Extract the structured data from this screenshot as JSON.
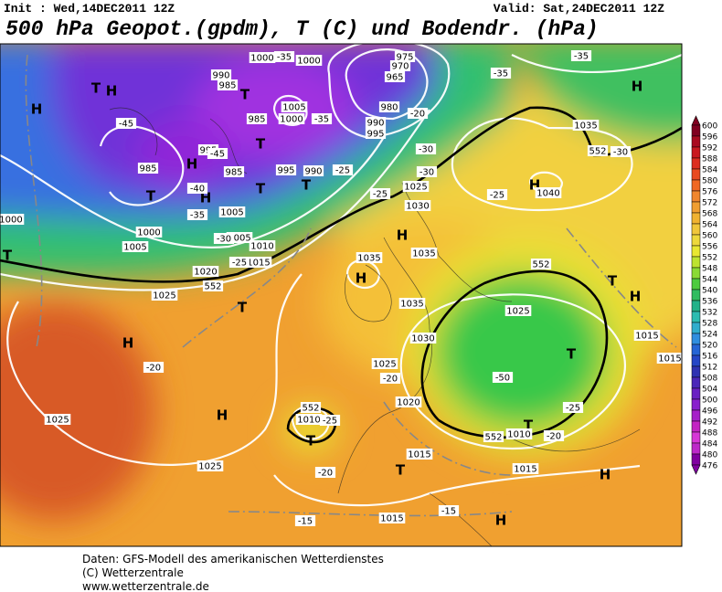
{
  "header": {
    "init": "Init : Wed,14DEC2011  12Z",
    "valid": "Valid: Sat,24DEC2011  12Z",
    "title": "500 hPa Geopot.(gpdm), T (C) und Bodendr. (hPa)"
  },
  "color_scale": {
    "levels": [
      600,
      596,
      592,
      588,
      584,
      580,
      576,
      572,
      568,
      564,
      560,
      556,
      552,
      548,
      544,
      540,
      536,
      532,
      528,
      524,
      520,
      516,
      512,
      508,
      504,
      500,
      496,
      492,
      488,
      484,
      480,
      476
    ]
  },
  "map_labels": [
    "H",
    "H",
    "T",
    "T",
    "H",
    "T",
    "H",
    "T",
    "T",
    "T",
    "H",
    "H",
    "T",
    "H",
    "H",
    "T",
    "T",
    "H",
    "H",
    "H",
    "T",
    "T",
    "T",
    "H",
    "H",
    "T",
    "990",
    "985",
    "1000",
    "1000",
    "985",
    "1005",
    "1000",
    "975",
    "970",
    "965",
    "980",
    "990",
    "995",
    "995",
    "985",
    "995",
    "990",
    "985",
    "1000",
    "1005",
    "1000",
    "1005",
    "1005",
    "1010",
    "1015",
    "1020",
    "1025",
    "1025",
    "1030",
    "1035",
    "1035",
    "1035",
    "1030",
    "1025",
    "1025",
    "1020",
    "1010",
    "1015",
    "1015",
    "1010",
    "1015",
    "1025",
    "1025",
    "1035",
    "1040",
    "1015",
    "1015",
    "-35",
    "-35",
    "-45",
    "-45",
    "-40",
    "-35",
    "-30",
    "-25",
    "-20",
    "-30",
    "-25",
    "-30",
    "-25",
    "-25",
    "-35",
    "-35",
    "-30",
    "-20",
    "-25",
    "-20",
    "-50",
    "-25",
    "-20",
    "-15",
    "-15",
    "-20",
    "552",
    "552",
    "552",
    "552",
    "552"
  ],
  "footer": [
    "Daten: GFS-Modell des amerikanischen Wetterdienstes",
    "(C) Wetterzentrale",
    "www.wetterzentrale.de"
  ]
}
